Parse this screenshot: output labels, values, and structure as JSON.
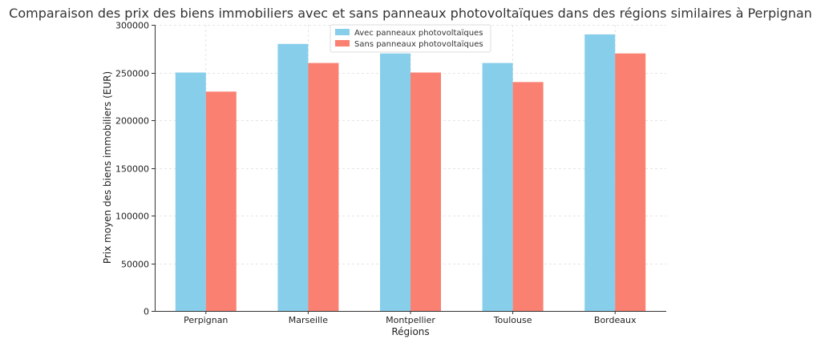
{
  "chart_data": {
    "type": "bar",
    "title": "Comparaison des prix des biens immobiliers avec et sans panneaux photovoltaïques dans des régions similaires à Perpignan",
    "xlabel": "Régions",
    "ylabel": "Prix moyen des biens immobiliers (EUR)",
    "categories": [
      "Perpignan",
      "Marseille",
      "Montpellier",
      "Toulouse",
      "Bordeaux"
    ],
    "series": [
      {
        "name": "Avec panneaux photovoltaïques",
        "color": "#87CEEB",
        "values": [
          250000,
          280000,
          270000,
          260000,
          290000
        ]
      },
      {
        "name": "Sans panneaux photovoltaïques",
        "color": "#FA8072",
        "values": [
          230000,
          260000,
          250000,
          240000,
          270000
        ]
      }
    ],
    "yticks": [
      0,
      50000,
      100000,
      150000,
      200000,
      250000,
      300000
    ],
    "ylim": [
      0,
      300000
    ],
    "grid": true,
    "legend_position": "top-center"
  }
}
